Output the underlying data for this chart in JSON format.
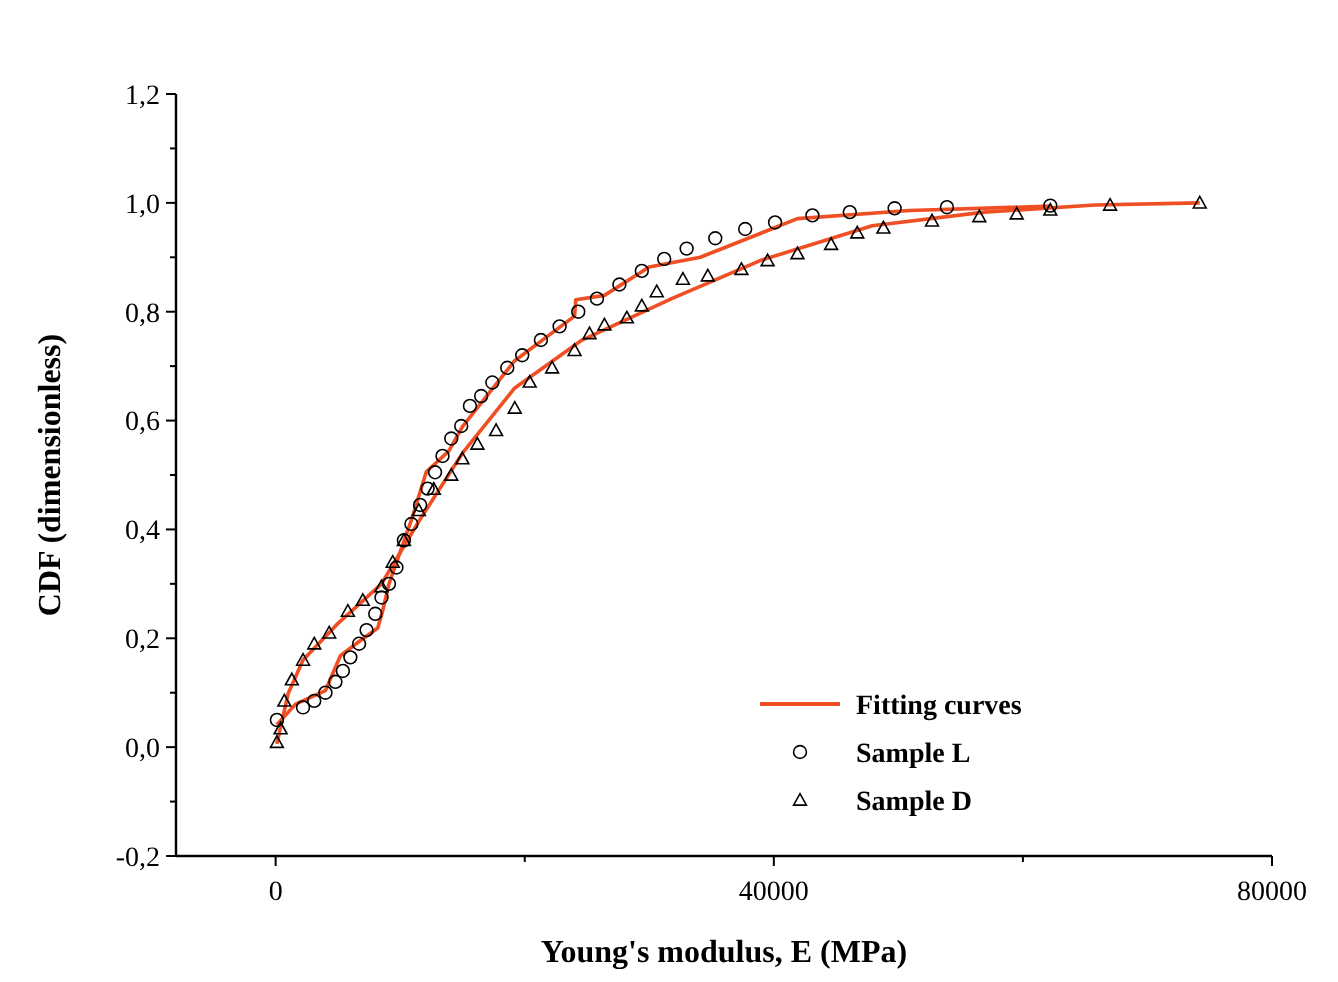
{
  "chart_data": {
    "type": "scatter",
    "xlabel": "Young's modulus, E (MPa)",
    "ylabel": "CDF (dimensionless)",
    "xlim": [
      -8000,
      80000
    ],
    "ylim": [
      -0.2,
      1.2
    ],
    "xticks": [
      0,
      {
        "value": 20000,
        "label": null
      },
      40000,
      {
        "value": 60000,
        "label": null
      },
      80000
    ],
    "yticks": [
      {
        "value": -0.2,
        "label": "-0,2"
      },
      {
        "value": -0.1,
        "label": null
      },
      {
        "value": 0,
        "label": "0,0"
      },
      {
        "value": 0.1,
        "label": null
      },
      {
        "value": 0.2,
        "label": "0,2"
      },
      {
        "value": 0.3,
        "label": null
      },
      {
        "value": 0.4,
        "label": "0,4"
      },
      {
        "value": 0.5,
        "label": null
      },
      {
        "value": 0.6,
        "label": "0,6"
      },
      {
        "value": 0.7,
        "label": null
      },
      {
        "value": 0.8,
        "label": "0,8"
      },
      {
        "value": 0.9,
        "label": null
      },
      {
        "value": 1.0,
        "label": "1,0"
      },
      {
        "value": 1.1,
        "label": null
      },
      {
        "value": 1.2,
        "label": "1,2"
      }
    ],
    "grid": false,
    "legend": "bottom right",
    "series": [
      {
        "name": "Fitting curves",
        "type": "line",
        "marker": "none",
        "line_style": "solid",
        "color": "#f04e23",
        "x": [
          100,
          1600,
          4000,
          5200,
          6700,
          8200,
          8600,
          9100,
          10900,
          12100,
          13900,
          15000,
          19200,
          24000,
          24100,
          26400,
          30000,
          34100,
          41900,
          50900,
          62200
        ],
        "values": [
          0.041,
          0.079,
          0.104,
          0.168,
          0.194,
          0.219,
          0.251,
          0.3,
          0.417,
          0.506,
          0.544,
          0.589,
          0.71,
          0.792,
          0.822,
          0.83,
          0.882,
          0.9,
          0.971,
          0.986,
          0.994
        ]
      },
      {
        "type": "line",
        "marker": "none",
        "line_style": "solid",
        "color": "#f04e23",
        "x": [
          100,
          1000,
          2200,
          4900,
          8500,
          11500,
          15000,
          19200,
          24600,
          31800,
          38900,
          47900,
          56900,
          65800,
          74200
        ],
        "values": [
          0.006,
          0.098,
          0.16,
          0.225,
          0.3,
          0.415,
          0.54,
          0.66,
          0.748,
          0.824,
          0.894,
          0.958,
          0.983,
          0.996,
          1.0
        ]
      },
      {
        "name": "Sample L",
        "marker": "circle",
        "color": "#000000",
        "x": [
          100,
          2200,
          3100,
          4000,
          4800,
          5400,
          6000,
          6700,
          7300,
          8000,
          8500,
          9100,
          9700,
          10300,
          10900,
          11600,
          12200,
          12800,
          13400,
          14100,
          14900,
          15600,
          16500,
          17400,
          18600,
          19800,
          21300,
          22800,
          24300,
          25800,
          27600,
          29400,
          31200,
          33000,
          35300,
          37700,
          40100,
          43100,
          46100,
          49700,
          53900,
          62200
        ],
        "values": [
          0.05,
          0.073,
          0.085,
          0.1,
          0.12,
          0.14,
          0.165,
          0.19,
          0.215,
          0.245,
          0.275,
          0.3,
          0.33,
          0.38,
          0.41,
          0.445,
          0.475,
          0.505,
          0.535,
          0.567,
          0.59,
          0.627,
          0.645,
          0.67,
          0.697,
          0.72,
          0.748,
          0.773,
          0.8,
          0.824,
          0.85,
          0.875,
          0.897,
          0.916,
          0.935,
          0.952,
          0.964,
          0.977,
          0.983,
          0.99,
          0.992,
          0.995
        ]
      },
      {
        "name": "Sample D",
        "marker": "triangle",
        "color": "#000000",
        "x": [
          100,
          400,
          700,
          1300,
          2200,
          3100,
          4300,
          5800,
          7000,
          8500,
          9400,
          10300,
          11500,
          12700,
          14100,
          15000,
          16200,
          17700,
          19200,
          20400,
          22200,
          24000,
          25200,
          26400,
          28200,
          29400,
          30600,
          32700,
          34700,
          37400,
          39500,
          41900,
          44600,
          46700,
          48800,
          52700,
          56500,
          59500,
          62200,
          67000,
          74200
        ],
        "values": [
          0.009,
          0.034,
          0.085,
          0.124,
          0.16,
          0.19,
          0.21,
          0.25,
          0.27,
          0.295,
          0.34,
          0.38,
          0.435,
          0.474,
          0.5,
          0.53,
          0.557,
          0.582,
          0.623,
          0.671,
          0.697,
          0.729,
          0.76,
          0.776,
          0.789,
          0.811,
          0.837,
          0.86,
          0.866,
          0.878,
          0.894,
          0.907,
          0.924,
          0.945,
          0.954,
          0.967,
          0.975,
          0.98,
          0.987,
          0.996,
          1.0
        ]
      }
    ]
  }
}
